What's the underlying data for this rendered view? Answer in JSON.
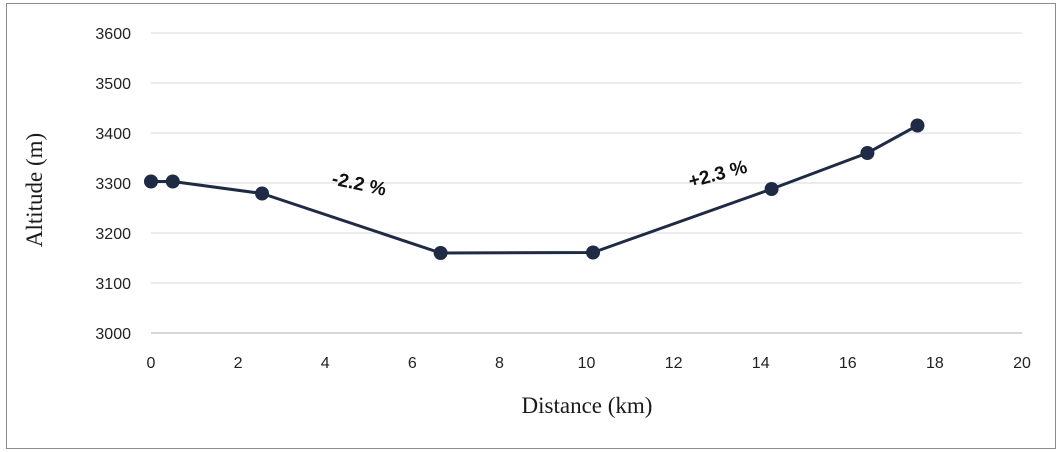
{
  "chart_data": {
    "type": "line",
    "title": "",
    "xlabel": "Distance (km)",
    "ylabel": "Altitude (m)",
    "xlim": [
      0,
      20
    ],
    "ylim": [
      3000,
      3600
    ],
    "x_ticks": [
      0,
      2,
      4,
      6,
      8,
      10,
      12,
      14,
      16,
      18,
      20
    ],
    "y_ticks": [
      3000,
      3100,
      3200,
      3300,
      3400,
      3500,
      3600
    ],
    "grid": "horizontal",
    "legend": "none",
    "series": [
      {
        "color": "#1f2a44",
        "points": [
          {
            "x": 0.0,
            "y": 3303
          },
          {
            "x": 0.5,
            "y": 3303
          },
          {
            "x": 2.55,
            "y": 3279
          },
          {
            "x": 6.65,
            "y": 3160
          },
          {
            "x": 10.15,
            "y": 3161
          },
          {
            "x": 14.25,
            "y": 3288
          },
          {
            "x": 16.45,
            "y": 3360
          },
          {
            "x": 17.6,
            "y": 3415
          }
        ]
      }
    ],
    "annotations": [
      {
        "text": "-2.2 %",
        "x": 4.75,
        "y": 3286,
        "rotation": 12
      },
      {
        "text": "+2.3 %",
        "x": 13.05,
        "y": 3306,
        "rotation": -15
      }
    ]
  }
}
